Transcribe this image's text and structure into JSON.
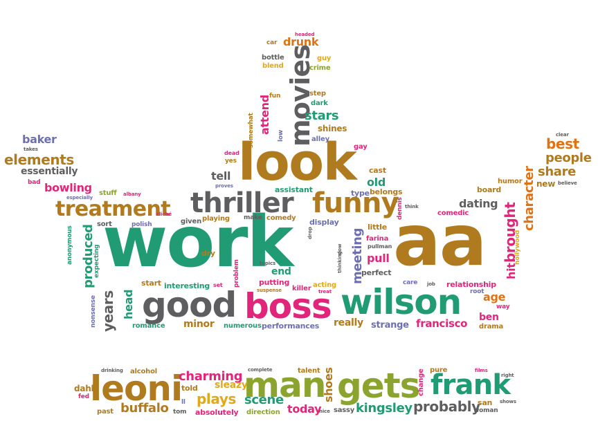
{
  "colors": {
    "brown": "#b07a1e",
    "green": "#209b74",
    "gray": "#5e5e60",
    "pink": "#e0257a",
    "purple": "#6d6fb0",
    "orange": "#df7213",
    "olive": "#8aa42f",
    "gold": "#e0a81a"
  },
  "words": {
    "work": "work",
    "aa": "aa",
    "look": "look",
    "wilson": "wilson",
    "boss": "boss",
    "good": "good",
    "thriller": "thriller",
    "funny": "funny",
    "movies": "movies",
    "treatment": "treatment",
    "leoni": "leoni",
    "man": "man",
    "gets": "gets",
    "frank": "frank",
    "elements": "elements",
    "bowling": "bowling",
    "baker": "baker",
    "essentially": "essentially",
    "best": "best",
    "people": "people",
    "share": "share",
    "character": "character",
    "brought": "brought",
    "hit": "hit",
    "dating": "dating",
    "drunk": "drunk",
    "stars": "stars",
    "years": "years",
    "head": "head",
    "produced": "produced",
    "charming": "charming",
    "plays": "plays",
    "scene": "scene",
    "buffalo": "buffalo",
    "kingsley": "kingsley",
    "probably": "probably",
    "francisco": "francisco",
    "ben": "ben",
    "age": "age",
    "minor": "minor",
    "really": "really",
    "strange": "strange",
    "meeting": "meeting",
    "pull": "pull",
    "end": "end",
    "putting": "putting",
    "killer": "killer",
    "acting": "acting",
    "perfect": "perfect",
    "attend": "attend",
    "shines": "shines",
    "tell": "tell",
    "old": "old",
    "shoes": "shoes",
    "today": "today",
    "sleazy": "sleazy",
    "absolutely": "absolutely",
    "direction": "direction",
    "performances": "performances",
    "numerous": "numerous",
    "romance": "romance",
    "start": "start",
    "interesting": "interesting",
    "relationship": "relationship",
    "drama": "drama",
    "way": "way",
    "root": "root",
    "comedic": "comedic",
    "board": "board",
    "humor": "humor",
    "new": "new",
    "believe": "believe",
    "clear": "clear",
    "hollywood": "hollywood",
    "little": "little",
    "farina": "farina",
    "pullman": "pullman",
    "dennis": "dennis",
    "belongs": "belongs",
    "type": "type",
    "cast": "cast",
    "gay": "gay",
    "assistant": "assistant",
    "display": "display",
    "comedy": "comedy",
    "make": "make",
    "playing": "playing",
    "given": "given",
    "proves": "proves",
    "yes": "yes",
    "dead": "dead",
    "somewhat": "somewhat",
    "low": "low",
    "alley": "alley",
    "dark": "dark",
    "step": "step",
    "fun": "fun",
    "car": "car",
    "headed": "headed",
    "guy": "guy",
    "crime": "crime",
    "bottle": "bottle",
    "blend": "blend",
    "stuff": "stuff",
    "albany": "albany",
    "especially": "especially",
    "bad": "bad",
    "takes": "takes",
    "sort": "sort",
    "polish": "polish",
    "cliche": "cliché",
    "anonymous": "anonymous",
    "expecting": "expecting",
    "nonsense": "nonsense",
    "dry": "dry",
    "topics": "topics",
    "problem": "problem",
    "suspense": "suspense",
    "set": "set",
    "treat": "treat",
    "thinking": "thinking",
    "slow": "slow",
    "care": "care",
    "job": "job",
    "drop": "drop",
    "think": "think",
    "drinking": "drinking",
    "alcohol": "alcohol",
    "complete": "complete",
    "talent": "talent",
    "pure": "pure",
    "films": "films",
    "right": "right",
    "dahl": "dahl",
    "fed": "fed",
    "past": "past",
    "told": "told",
    "ll": "ll",
    "tom": "tom",
    "change": "change",
    "nice": "nice",
    "sassy": "sassy",
    "san": "san",
    "woman": "woman",
    "shows": "shows"
  }
}
